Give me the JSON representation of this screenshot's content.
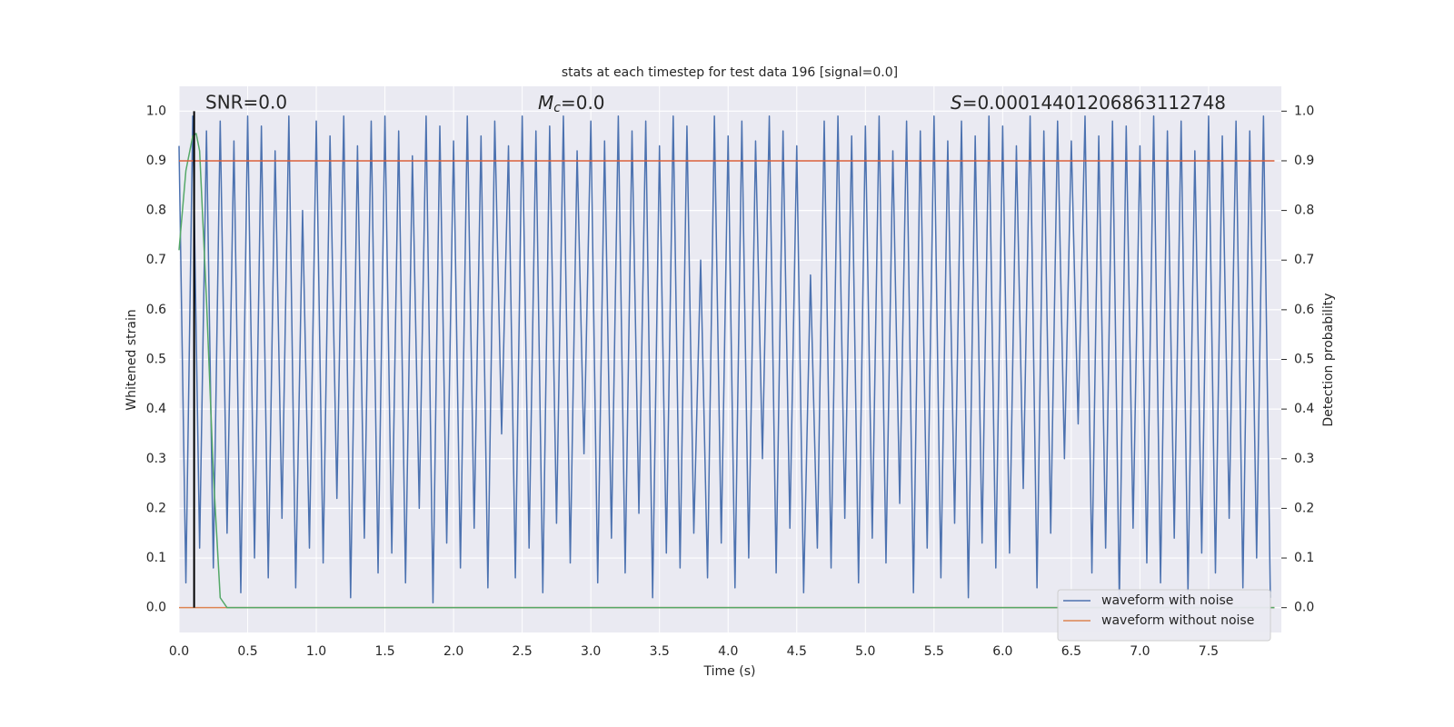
{
  "chart_data": {
    "type": "line",
    "title": "stats at each timestep for test data 196 [signal=0.0]",
    "xlabel": "Time (s)",
    "ylabel": "Whitened strain",
    "y2label": "Detection probability",
    "annotations": [
      {
        "text": "SNR=0.0"
      },
      {
        "symbol": "M",
        "subscript": "c",
        "text": "=0.0"
      },
      {
        "symbol": "S",
        "text": "=0.00014401206863112748"
      }
    ],
    "xlim": [
      0,
      8.03
    ],
    "xticks": [
      {
        "value": 0,
        "label": "0.0"
      },
      0.5,
      {
        "value": 1,
        "label": "1.0"
      },
      1.5,
      {
        "value": 2,
        "label": "2.0"
      },
      2.5,
      {
        "value": 3,
        "label": "3.0"
      },
      3.5,
      {
        "value": 4,
        "label": "4.0"
      },
      4.5,
      {
        "value": 5,
        "label": "5.0"
      },
      5.5,
      {
        "value": 6,
        "label": "6.0"
      },
      6.5,
      {
        "value": 7,
        "label": "7.0"
      },
      7.5
    ],
    "ylim": [
      -0.05,
      1.05
    ],
    "yticks": [
      {
        "value": 0,
        "label": "0.0"
      },
      0.1,
      0.2,
      0.3,
      0.4,
      0.5,
      0.6,
      0.7,
      0.8,
      0.9,
      {
        "value": 1,
        "label": "1.0"
      }
    ],
    "y2lim": [
      -0.05,
      1.05
    ],
    "y2ticks": [
      {
        "value": 0,
        "label": "0.0"
      },
      0.1,
      0.2,
      0.3,
      0.4,
      0.5,
      0.6,
      0.7,
      0.8,
      0.9,
      {
        "value": 1,
        "label": "1.0"
      }
    ],
    "grid": true,
    "legend": "lower right",
    "series": [
      {
        "name": "waveform with noise",
        "color": "#4c72b0",
        "x": [
          0,
          0.05,
          0.1,
          0.15,
          0.2,
          0.25,
          0.3,
          0.35,
          0.4,
          0.45,
          0.5,
          0.55,
          0.6,
          0.65,
          0.7,
          0.75,
          0.8,
          0.85,
          0.9,
          0.95,
          1,
          1.05,
          1.1,
          1.15,
          1.2,
          1.25,
          1.3,
          1.35,
          1.4,
          1.45,
          1.5,
          1.55,
          1.6,
          1.65,
          1.7,
          1.75,
          1.8,
          1.85,
          1.9,
          1.95,
          2,
          2.05,
          2.1,
          2.15,
          2.2,
          2.25,
          2.3,
          2.35,
          2.4,
          2.45,
          2.5,
          2.55,
          2.6,
          2.65,
          2.7,
          2.75,
          2.8,
          2.85,
          2.9,
          2.95,
          3,
          3.05,
          3.1,
          3.15,
          3.2,
          3.25,
          3.3,
          3.35,
          3.4,
          3.45,
          3.5,
          3.55,
          3.6,
          3.65,
          3.7,
          3.75,
          3.8,
          3.85,
          3.9,
          3.95,
          4,
          4.05,
          4.1,
          4.15,
          4.2,
          4.25,
          4.3,
          4.35,
          4.4,
          4.45,
          4.5,
          4.55,
          4.6,
          4.65,
          4.7,
          4.75,
          4.8,
          4.85,
          4.9,
          4.95,
          5,
          5.05,
          5.1,
          5.15,
          5.2,
          5.25,
          5.3,
          5.35,
          5.4,
          5.45,
          5.5,
          5.55,
          5.6,
          5.65,
          5.7,
          5.75,
          5.8,
          5.85,
          5.9,
          5.95,
          6,
          6.05,
          6.1,
          6.15,
          6.2,
          6.25,
          6.3,
          6.35,
          6.4,
          6.45,
          6.5,
          6.55,
          6.6,
          6.65,
          6.7,
          6.75,
          6.8,
          6.85,
          6.9,
          6.95,
          7,
          7.05,
          7.1,
          7.15,
          7.2,
          7.25,
          7.3,
          7.35,
          7.4,
          7.45,
          7.5,
          7.55,
          7.6,
          7.65,
          7.7,
          7.75,
          7.8,
          7.85,
          7.9,
          7.95
        ],
        "values": [
          0.93,
          0.05,
          0.99,
          0.12,
          0.96,
          0.08,
          0.98,
          0.15,
          0.94,
          0.03,
          0.99,
          0.1,
          0.97,
          0.06,
          0.92,
          0.18,
          0.99,
          0.04,
          0.8,
          0.12,
          0.98,
          0.09,
          0.95,
          0.22,
          0.99,
          0.02,
          0.93,
          0.14,
          0.98,
          0.07,
          0.99,
          0.11,
          0.96,
          0.05,
          0.91,
          0.2,
          0.99,
          0.01,
          0.97,
          0.13,
          0.94,
          0.08,
          0.99,
          0.16,
          0.95,
          0.04,
          0.98,
          0.35,
          0.93,
          0.06,
          0.99,
          0.12,
          0.96,
          0.03,
          0.97,
          0.17,
          0.99,
          0.09,
          0.92,
          0.31,
          0.98,
          0.05,
          0.94,
          0.14,
          0.99,
          0.07,
          0.96,
          0.19,
          0.98,
          0.02,
          0.93,
          0.11,
          0.99,
          0.08,
          0.97,
          0.15,
          0.7,
          0.06,
          0.99,
          0.13,
          0.95,
          0.04,
          0.98,
          0.1,
          0.94,
          0.3,
          0.99,
          0.07,
          0.96,
          0.16,
          0.93,
          0.03,
          0.67,
          0.12,
          0.98,
          0.08,
          0.99,
          0.18,
          0.95,
          0.05,
          0.97,
          0.14,
          0.99,
          0.09,
          0.92,
          0.21,
          0.98,
          0.03,
          0.96,
          0.12,
          0.99,
          0.06,
          0.94,
          0.17,
          0.98,
          0.02,
          0.95,
          0.13,
          0.99,
          0.08,
          0.97,
          0.11,
          0.93,
          0.24,
          0.99,
          0.04,
          0.96,
          0.15,
          0.98,
          0.3,
          0.94,
          0.37,
          0.99,
          0.07,
          0.95,
          0.12,
          0.98,
          0.01,
          0.97,
          0.16,
          0.93,
          0.09,
          0.99,
          0.05,
          0.96,
          0.14,
          0.98,
          0.03,
          0.92,
          0.11,
          0.99,
          0.07,
          0.95,
          0.18,
          0.98,
          0.04,
          0.96,
          0.1,
          0.99,
          0.02
        ]
      },
      {
        "name": "waveform without noise",
        "color": "#dd8452",
        "x": [
          0,
          7.98
        ],
        "values": [
          0,
          0
        ]
      },
      {
        "color": "#55a868",
        "axis": "y2",
        "x": [
          0,
          0.05,
          0.1,
          0.125,
          0.15,
          0.2,
          0.25,
          0.3,
          0.35,
          0.4,
          7.98
        ],
        "values": [
          0.72,
          0.88,
          0.95,
          0.955,
          0.92,
          0.62,
          0.27,
          0.02,
          0,
          0,
          0
        ]
      }
    ],
    "threshold": {
      "value": 0.9,
      "color": "#d9603b",
      "axis": "y2",
      "x": [
        0,
        7.98
      ]
    },
    "marker_x": {
      "value": 0.11,
      "color": "#000000"
    }
  }
}
